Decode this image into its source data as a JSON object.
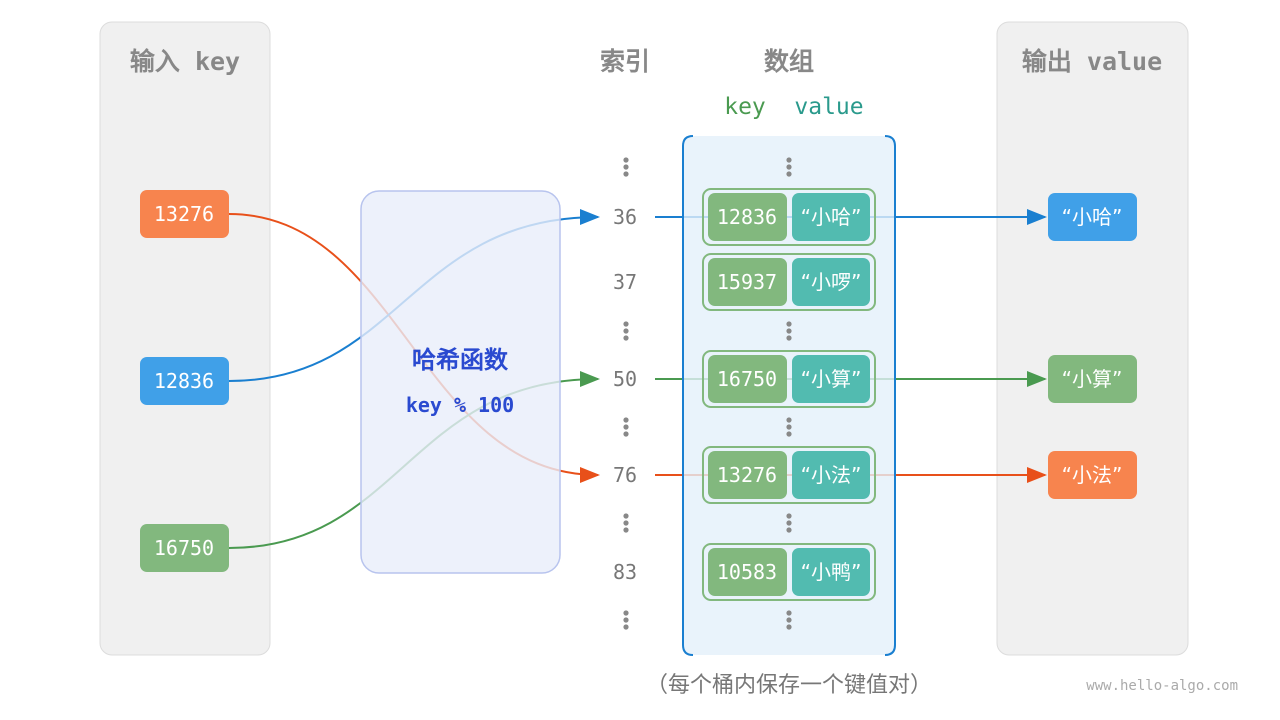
{
  "headers": {
    "input": "输入 key",
    "index": "索引",
    "array": "数组",
    "output": "输出 value",
    "key_label": "key",
    "value_label": "value"
  },
  "inputs": [
    {
      "key": "13276",
      "color": "#f7844e"
    },
    {
      "key": "12836",
      "color": "#40a0e8"
    },
    {
      "key": "16750",
      "color": "#82b87e"
    }
  ],
  "hash_function": {
    "title": "哈希函数",
    "formula": "key % 100"
  },
  "buckets": [
    {
      "index": "36",
      "key": "12836",
      "value": "“小哈”"
    },
    {
      "index": "37",
      "key": "15937",
      "value": "“小啰”"
    },
    {
      "index": "50",
      "key": "16750",
      "value": "“小算”"
    },
    {
      "index": "76",
      "key": "13276",
      "value": "“小法”"
    },
    {
      "index": "83",
      "key": "10583",
      "value": "“小鸭”"
    }
  ],
  "outputs": [
    {
      "value": "“小哈”",
      "color": "#40a0e8"
    },
    {
      "value": "“小算”",
      "color": "#82b87e"
    },
    {
      "value": "“小法”",
      "color": "#f7844e"
    }
  ],
  "caption": "（每个桶内保存一个键值对）",
  "watermark": "www.hello-algo.com",
  "colors": {
    "key_cell": "#82b87e",
    "value_cell": "#52bbb0",
    "array_border": "#1a7fd0",
    "hash_box": "#e9edfa"
  }
}
